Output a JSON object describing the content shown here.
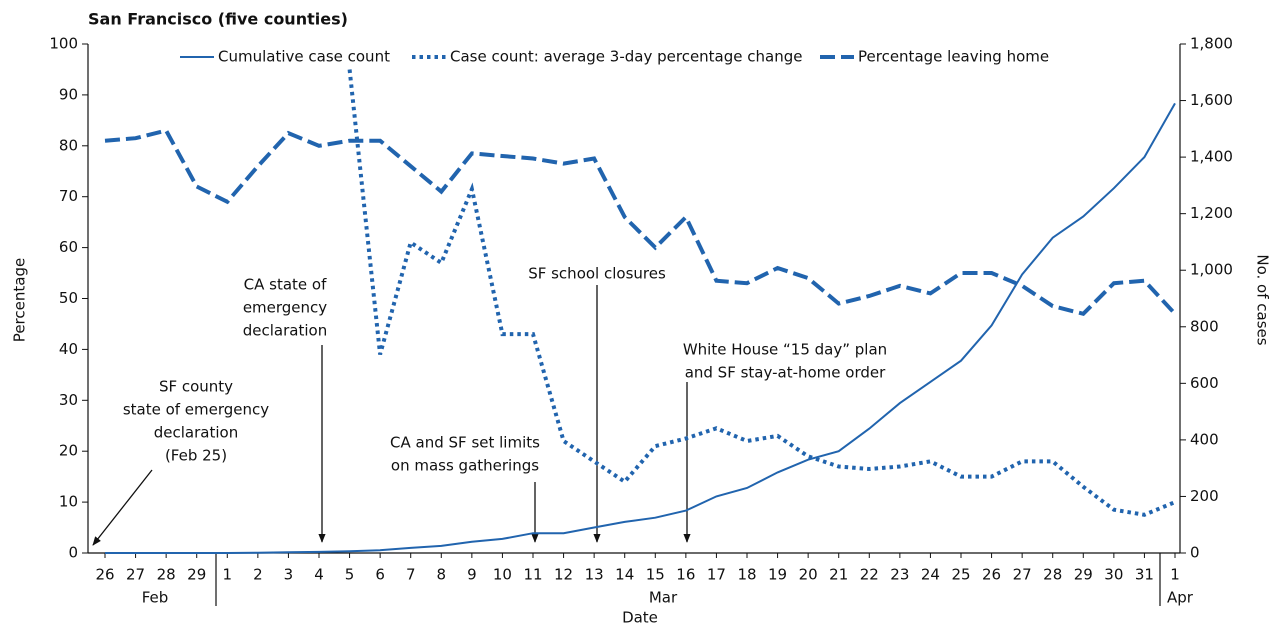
{
  "chart_data": {
    "type": "line",
    "title": "San Francisco (five counties)",
    "xlabel": "Date",
    "ylabel": "Percentage",
    "y2label": "No. of cases",
    "categories": [
      "26",
      "27",
      "28",
      "29",
      "1",
      "2",
      "3",
      "4",
      "5",
      "6",
      "7",
      "8",
      "9",
      "10",
      "11",
      "12",
      "13",
      "14",
      "15",
      "16",
      "17",
      "18",
      "19",
      "20",
      "21",
      "22",
      "23",
      "24",
      "25",
      "26",
      "27",
      "28",
      "29",
      "30",
      "31",
      "1"
    ],
    "month_labels": [
      "Feb",
      "Mar",
      "Apr"
    ],
    "series": [
      {
        "name": "Cumulative case count",
        "color": "#2164ae",
        "style": "solid",
        "axis": "y2",
        "values": [
          0,
          0,
          0,
          0,
          0,
          1,
          3,
          4,
          6,
          10,
          18,
          25,
          40,
          50,
          70,
          70,
          90,
          110,
          125,
          150,
          200,
          230,
          285,
          330,
          360,
          440,
          530,
          605,
          680,
          805,
          985,
          1115,
          1190,
          1290,
          1400,
          1590
        ]
      },
      {
        "name": "Case count: average 3-day percentage change",
        "color": "#2164ae",
        "style": "dotted",
        "values": [
          null,
          null,
          null,
          null,
          null,
          null,
          null,
          null,
          95,
          39,
          61,
          57,
          71.5,
          43,
          43,
          22,
          18,
          14,
          21,
          22.5,
          24.5,
          22,
          23,
          19,
          17,
          16.5,
          17,
          18,
          15,
          15,
          18,
          18,
          13,
          8.5,
          7.5,
          10
        ]
      },
      {
        "name": "Percentage leaving home",
        "color": "#2164ae",
        "style": "dashed",
        "values": [
          81,
          81.5,
          83,
          72,
          69,
          76,
          82.5,
          80,
          81,
          81,
          76,
          71,
          78.5,
          78,
          77.5,
          76.5,
          77.5,
          66,
          60,
          66,
          53.5,
          53,
          56,
          54,
          49,
          50.5,
          52.5,
          51,
          55,
          55,
          52.5,
          48.5,
          47,
          53,
          53.5,
          47
        ]
      }
    ],
    "ylim": [
      0,
      100
    ],
    "yticks": [
      0,
      10,
      20,
      30,
      40,
      50,
      60,
      70,
      80,
      90,
      100
    ],
    "y2lim": [
      0,
      1800
    ],
    "y2ticks": [
      0,
      200,
      400,
      600,
      800,
      {
        "value": 1000,
        "label": "1,000"
      },
      {
        "value": 1200,
        "label": "1,200"
      },
      {
        "value": 1400,
        "label": "1,400"
      },
      {
        "value": 1600,
        "label": "1,600"
      },
      {
        "value": 1800,
        "label": "1,800"
      }
    ],
    "annotations": [
      {
        "lines": [
          "SF county",
          "state of emergency",
          "declaration",
          "(Feb 25)"
        ]
      },
      {
        "lines": [
          "CA state of",
          "emergency",
          "declaration"
        ]
      },
      {
        "lines": [
          "SF school closures"
        ]
      },
      {
        "lines": [
          "CA and SF set limits",
          "on mass gatherings"
        ]
      },
      {
        "lines": [
          "White House “15 day” plan",
          "and SF stay-at-home order"
        ]
      }
    ]
  }
}
